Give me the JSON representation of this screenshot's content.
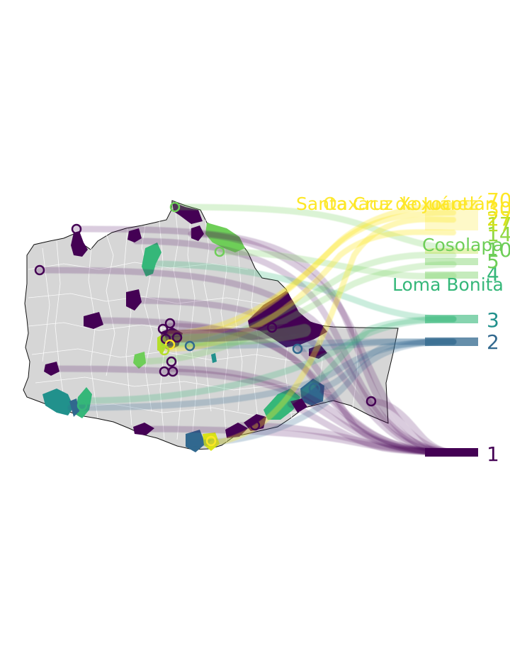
{
  "map": {
    "colors": {
      "rank1": "#440154",
      "rank2": "#31688e",
      "rank3": "#35b779",
      "mid": "#21918c",
      "green": "#6ece58",
      "lightgreen": "#b5de2b",
      "yellow": "#fde725",
      "land": "#d9d9d9",
      "border": "#ffffff"
    },
    "rank_labels": [
      "1",
      "2",
      "3",
      "4",
      "5",
      "10",
      "14",
      "17",
      "27",
      "30",
      "70"
    ],
    "place_labels": {
      "loma_bonita": "Loma Bonita",
      "cosolapa": "Cosolapa",
      "santa_cruz": "Santa Cruz Xoxocotlán",
      "oaxaca": "Oaxaca de Juárez"
    }
  }
}
